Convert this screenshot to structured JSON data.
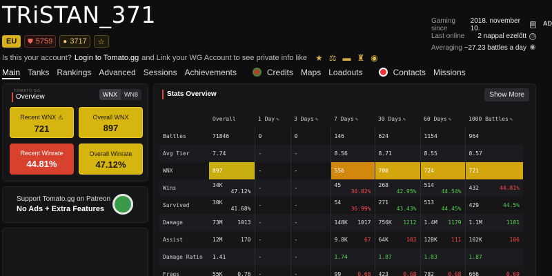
{
  "player": {
    "name": "TRiSTAN_371",
    "region": "EU",
    "badge_red_value": "5759",
    "badge_gold_value": "3717",
    "account_prefix": "Is this your account?",
    "account_link": "Login to Tomato.gg",
    "account_suffix": "and Link your WG Account to see private info like"
  },
  "meta": {
    "gaming_since_label": "Gaming since",
    "gaming_since_value": "2018. november 10.",
    "last_online_label": "Last online",
    "last_online_value": "2 nappal ezelőtt",
    "averaging_label": "Averaging",
    "averaging_value": "~27.23 battles a day",
    "ad_label": "AD"
  },
  "nav": {
    "items": [
      "Main",
      "Tanks",
      "Rankings",
      "Advanced",
      "Sessions",
      "Achievements",
      "Credits",
      "Maps",
      "Loadouts",
      "Contacts",
      "Missions"
    ],
    "active": "Main"
  },
  "overview": {
    "brand": "TOMATO.GG",
    "title": "Overview",
    "toggle": [
      "WNX",
      "WN8"
    ],
    "tiles": [
      {
        "label": "Recent WNX ⚠",
        "value": "721"
      },
      {
        "label": "Overall WNX",
        "value": "897"
      },
      {
        "label": "Recent Winrate",
        "value": "44.81%"
      },
      {
        "label": "Overall Winrate",
        "value": "47.12%"
      }
    ]
  },
  "patreon": {
    "line1": "Support Tomato.gg on Patreon",
    "line2": "No Ads + Extra Features"
  },
  "stats": {
    "title": "Stats Overview",
    "show_more": "Show More",
    "columns": [
      "Overall",
      "1 Day",
      "3 Days",
      "7 Days",
      "30 Days",
      "60 Days",
      "1000 Battles"
    ],
    "rows": [
      {
        "label": "Battles",
        "cells": [
          [
            "71846"
          ],
          [
            "0"
          ],
          [
            "0"
          ],
          [
            "146"
          ],
          [
            "624"
          ],
          [
            "1154"
          ],
          [
            "964"
          ]
        ]
      },
      {
        "label": "Avg Tier",
        "cells": [
          [
            "7.74"
          ],
          [
            "-"
          ],
          [
            "-"
          ],
          [
            "8.56"
          ],
          [
            "8.71"
          ],
          [
            "8.55"
          ],
          [
            "8.57"
          ]
        ]
      },
      {
        "label": "WNX",
        "cells": [
          [
            "897"
          ],
          [
            "-"
          ],
          [
            "-"
          ],
          [
            "556"
          ],
          [
            "700"
          ],
          [
            "724"
          ],
          [
            "721"
          ]
        ]
      },
      {
        "label": "Wins",
        "cells": [
          [
            "34K",
            "47.12%"
          ],
          [
            "-"
          ],
          [
            "-"
          ],
          [
            "45",
            "30.82%"
          ],
          [
            "268",
            "42.95%"
          ],
          [
            "514",
            "44.54%"
          ],
          [
            "432",
            "44.81%"
          ]
        ]
      },
      {
        "label": "Survived",
        "cells": [
          [
            "30K",
            "41.68%"
          ],
          [
            "-"
          ],
          [
            "-"
          ],
          [
            "54",
            "36.99%"
          ],
          [
            "271",
            "43.43%"
          ],
          [
            "513",
            "44.45%"
          ],
          [
            "429",
            "44.5%"
          ]
        ]
      },
      {
        "label": "Damage",
        "cells": [
          [
            "73M",
            "1013"
          ],
          [
            "-"
          ],
          [
            "-"
          ],
          [
            "148K",
            "1017"
          ],
          [
            "756K",
            "1212"
          ],
          [
            "1.4M",
            "1179"
          ],
          [
            "1.1M",
            "1181"
          ]
        ]
      },
      {
        "label": "Assist",
        "cells": [
          [
            "12M",
            "170"
          ],
          [
            "-"
          ],
          [
            "-"
          ],
          [
            "9.8K",
            "67"
          ],
          [
            "64K",
            "103"
          ],
          [
            "128K",
            "111"
          ],
          [
            "102K",
            "106"
          ]
        ]
      },
      {
        "label": "Damage Ratio",
        "cells": [
          [
            "1.41"
          ],
          [
            "-"
          ],
          [
            "-"
          ],
          [
            "1.74"
          ],
          [
            "1.87"
          ],
          [
            "1.83"
          ],
          [
            "1.87"
          ]
        ]
      },
      {
        "label": "Frags",
        "cells": [
          [
            "55K",
            "0.76"
          ],
          [
            "-"
          ],
          [
            "-"
          ],
          [
            "99",
            "0.68"
          ],
          [
            "423",
            "0.68"
          ],
          [
            "782",
            "0.68"
          ],
          [
            "666",
            "0.69"
          ]
        ]
      }
    ]
  }
}
